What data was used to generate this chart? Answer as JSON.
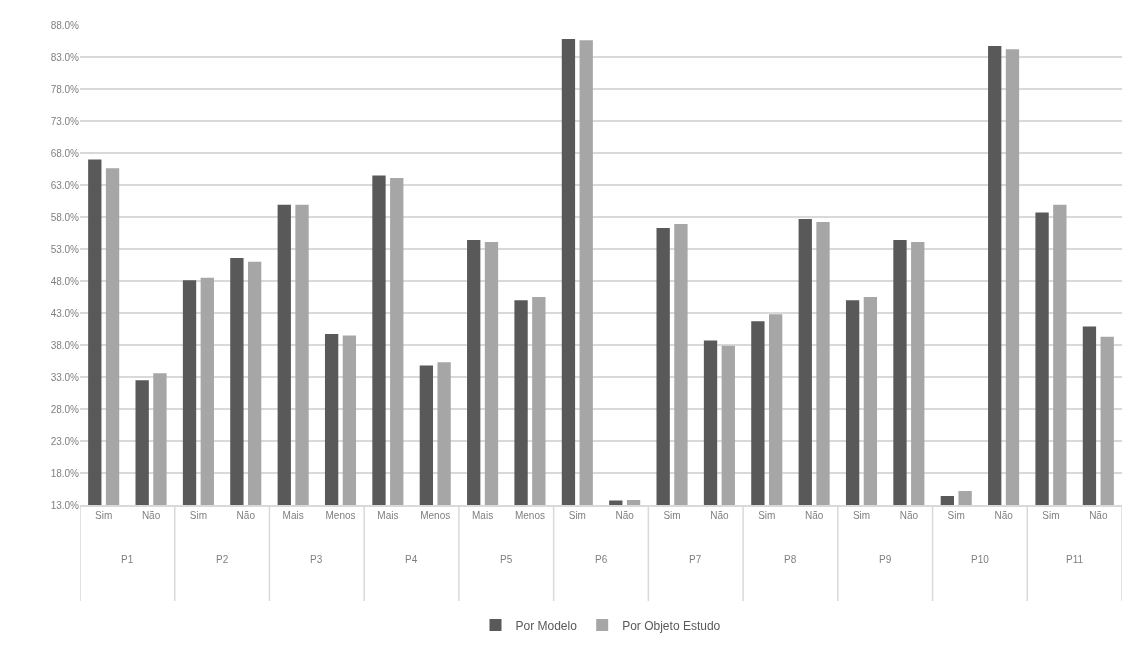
{
  "chart_data": {
    "type": "bar",
    "categories": [
      "Sim",
      "Não",
      "Sim",
      "Não",
      "Mais",
      "Menos",
      "Mais",
      "Menos",
      "Mais",
      "Menos",
      "Sim",
      "Não",
      "Sim",
      "Não",
      "Sim",
      "Não",
      "Sim",
      "Não",
      "Sim",
      "Não",
      "Sim",
      "Não"
    ],
    "annotations": [
      "P1",
      "P2",
      "P3",
      "P4",
      "P5",
      "P6",
      "P7",
      "P8",
      "P9",
      "P10",
      "P11"
    ],
    "series": [
      {
        "name": "Por Modelo",
        "color": "#595959",
        "values": [
          67.0,
          32.5,
          48.1,
          51.6,
          59.9,
          39.7,
          64.5,
          34.8,
          54.4,
          45.0,
          85.8,
          13.7,
          56.3,
          38.7,
          41.7,
          57.7,
          45.0,
          54.4,
          14.4,
          84.7,
          58.7,
          40.9
        ]
      },
      {
        "name": "Por Objeto Estudo",
        "color": "#a6a6a6",
        "values": [
          65.6,
          33.6,
          48.5,
          51.0,
          59.9,
          39.5,
          64.1,
          35.3,
          54.1,
          45.5,
          85.6,
          13.8,
          56.9,
          37.9,
          42.8,
          57.2,
          45.5,
          54.1,
          15.2,
          84.2,
          59.9,
          39.3
        ]
      }
    ],
    "ylim": [
      13,
      88
    ],
    "yticks": [
      {
        "value": 13,
        "label": "13.0%"
      },
      {
        "value": 18,
        "label": "18.0%"
      },
      {
        "value": 23,
        "label": "23.0%"
      },
      {
        "value": 28,
        "label": "28.0%"
      },
      {
        "value": 33,
        "label": "33.0%"
      },
      {
        "value": 38,
        "label": "38.0%"
      },
      {
        "value": 43,
        "label": "43.0%"
      },
      {
        "value": 48,
        "label": "48.0%"
      },
      {
        "value": 53,
        "label": "53.0%"
      },
      {
        "value": 58,
        "label": "58.0%"
      },
      {
        "value": 63,
        "label": "63.0%"
      },
      {
        "value": 68,
        "label": "68.0%"
      },
      {
        "value": 73,
        "label": "73.0%"
      },
      {
        "value": 78,
        "label": "78.0%"
      },
      {
        "value": 83,
        "label": "83.0%"
      },
      {
        "value": 88,
        "label": "88.0%"
      }
    ],
    "grid": "y",
    "legend": "bottom"
  }
}
